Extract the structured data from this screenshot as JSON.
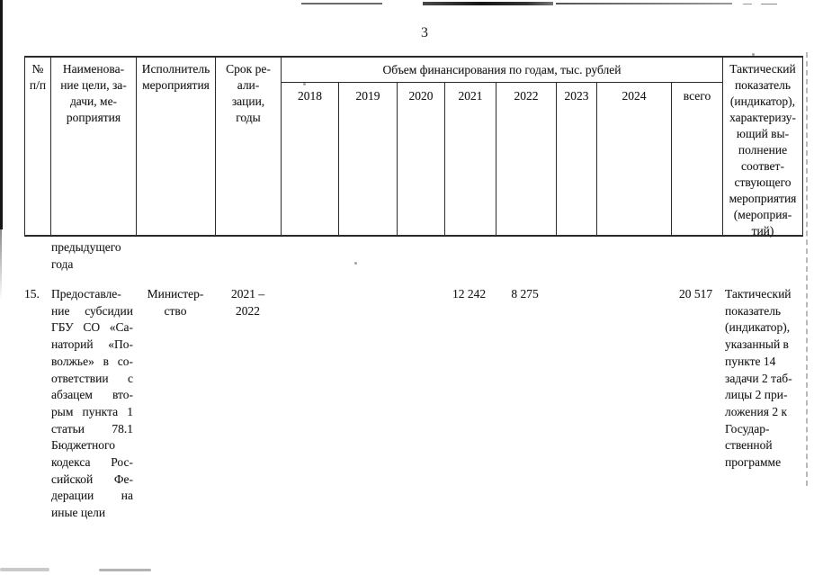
{
  "page": {
    "number": "3"
  },
  "table": {
    "header": {
      "col_num": "№\nп/п",
      "col_name": "Наименова-\nние цели, за-\nдачи, ме-\nроприятия",
      "col_executor": "Исполнитель\nмероприятия",
      "col_term": "Срок ре-\nали-\nзации,\nгоды",
      "col_funding_group": "Объем финансирования по годам, тыс. рублей",
      "years": [
        "2018",
        "2019",
        "2020",
        "2021",
        "2022",
        "2023",
        "2024",
        "всего"
      ],
      "col_indicator": "Тактический\nпоказатель\n(индикатор),\nхарактеризу-\nющий вы-\nполнение\nсоответ-\nствующего\nмероприятия\n(мероприя-\nтий)"
    },
    "carryover": {
      "lines": [
        "предыдущего",
        "года"
      ]
    },
    "row15": {
      "num": "15.",
      "name_lines": [
        "Предоставле-",
        "ние субсидии",
        "ГБУ СО «Са-",
        "наторий «По-",
        "волжье» в со-",
        "ответствии с",
        "абзацем вто-",
        "рым пункта 1",
        "статьи 78.1",
        "Бюджетного",
        "кодекса Рос-",
        "сийской Фе-",
        "дерации на",
        "иные цели"
      ],
      "executor_lines": [
        "Министер-",
        "ство"
      ],
      "term_lines": [
        "2021 –",
        "2022"
      ],
      "values": {
        "y2021": "12 242",
        "y2022": "8 275",
        "total": "20 517"
      },
      "indicator_lines": [
        "Тактический",
        "показатель",
        "(индикатор),",
        "указанный в",
        "пункте 14",
        "задачи 2 таб-",
        "лицы 2 при-",
        "ложения 2 к",
        "Государ-",
        "ственной",
        "программе"
      ]
    }
  },
  "colors": {
    "text": "#1c1c1c",
    "border": "#2a2a2a",
    "paper": "#ffffff"
  }
}
